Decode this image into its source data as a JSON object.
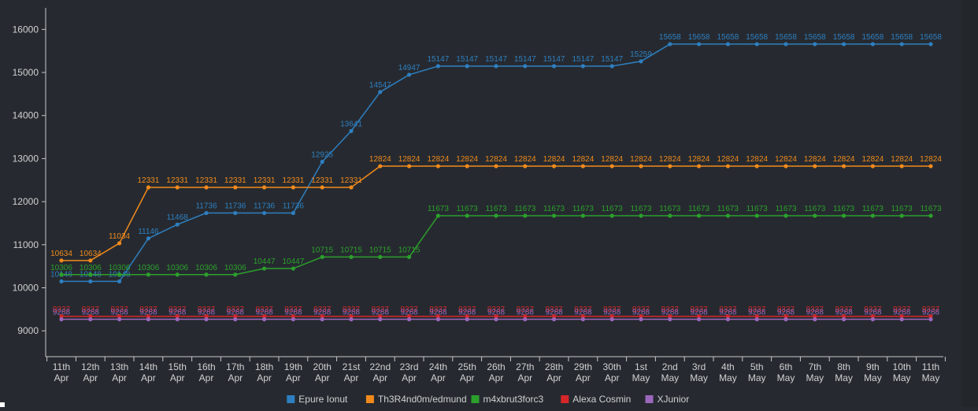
{
  "chart_data": {
    "type": "line",
    "categories": [
      [
        "11th",
        "Apr"
      ],
      [
        "12th",
        "Apr"
      ],
      [
        "13th",
        "Apr"
      ],
      [
        "14th",
        "Apr"
      ],
      [
        "15th",
        "Apr"
      ],
      [
        "16th",
        "Apr"
      ],
      [
        "17th",
        "Apr"
      ],
      [
        "18th",
        "Apr"
      ],
      [
        "19th",
        "Apr"
      ],
      [
        "20th",
        "Apr"
      ],
      [
        "21st",
        "Apr"
      ],
      [
        "22nd",
        "Apr"
      ],
      [
        "23rd",
        "Apr"
      ],
      [
        "24th",
        "Apr"
      ],
      [
        "25th",
        "Apr"
      ],
      [
        "26th",
        "Apr"
      ],
      [
        "27th",
        "Apr"
      ],
      [
        "28th",
        "Apr"
      ],
      [
        "29th",
        "Apr"
      ],
      [
        "30th",
        "Apr"
      ],
      [
        "1st",
        "May"
      ],
      [
        "2nd",
        "May"
      ],
      [
        "3rd",
        "May"
      ],
      [
        "4th",
        "May"
      ],
      [
        "5th",
        "May"
      ],
      [
        "6th",
        "May"
      ],
      [
        "7th",
        "May"
      ],
      [
        "8th",
        "May"
      ],
      [
        "9th",
        "May"
      ],
      [
        "10th",
        "May"
      ],
      [
        "11th",
        "May"
      ]
    ],
    "ylim": [
      8400,
      16500
    ],
    "yticks": [
      9000,
      10000,
      11000,
      12000,
      13000,
      14000,
      15000,
      16000
    ],
    "grid": false,
    "legend_position": "bottom",
    "series": [
      {
        "name": "Epure Ionut",
        "color": "#2e7fc0",
        "values": [
          10148,
          10148,
          10148,
          11146,
          11468,
          11736,
          11736,
          11736,
          11736,
          12925,
          13641,
          14547,
          14947,
          15147,
          15147,
          15147,
          15147,
          15147,
          15147,
          15147,
          15259,
          15658,
          15658,
          15658,
          15658,
          15658,
          15658,
          15658,
          15658,
          15658,
          15658
        ]
      },
      {
        "name": "Th3R4nd0m/edmund",
        "color": "#f28a1b",
        "values": [
          10634,
          10634,
          11034,
          12331,
          12331,
          12331,
          12331,
          12331,
          12331,
          12331,
          12331,
          12824,
          12824,
          12824,
          12824,
          12824,
          12824,
          12824,
          12824,
          12824,
          12824,
          12824,
          12824,
          12824,
          12824,
          12824,
          12824,
          12824,
          12824,
          12824,
          12824
        ]
      },
      {
        "name": "m4xbrut3forc3",
        "color": "#2ca02c",
        "values": [
          10306,
          10306,
          10306,
          10306,
          10306,
          10306,
          10306,
          10447,
          10447,
          10715,
          10715,
          10715,
          10715,
          11673,
          11673,
          11673,
          11673,
          11673,
          11673,
          11673,
          11673,
          11673,
          11673,
          11673,
          11673,
          11673,
          11673,
          11673,
          11673,
          11673,
          11673
        ]
      },
      {
        "name": "Alexa Cosmin",
        "color": "#d62728",
        "values": [
          9337,
          9337,
          9337,
          9337,
          9337,
          9337,
          9337,
          9337,
          9337,
          9337,
          9337,
          9337,
          9337,
          9337,
          9337,
          9337,
          9337,
          9337,
          9337,
          9337,
          9337,
          9337,
          9337,
          9337,
          9337,
          9337,
          9337,
          9337,
          9337,
          9337,
          9337
        ]
      },
      {
        "name": "XJunior",
        "color": "#9b67bd",
        "values": [
          9268,
          9268,
          9268,
          9268,
          9268,
          9268,
          9268,
          9268,
          9268,
          9268,
          9268,
          9268,
          9268,
          9268,
          9268,
          9268,
          9268,
          9268,
          9268,
          9268,
          9268,
          9268,
          9268,
          9268,
          9268,
          9268,
          9268,
          9268,
          9268,
          9268,
          9268
        ]
      }
    ]
  },
  "style": {
    "axis_color": "#c8c8c8",
    "tick_label_color": "#d0d0d0",
    "legend_text_color": "#d0d0d0",
    "background": "#262a30"
  }
}
